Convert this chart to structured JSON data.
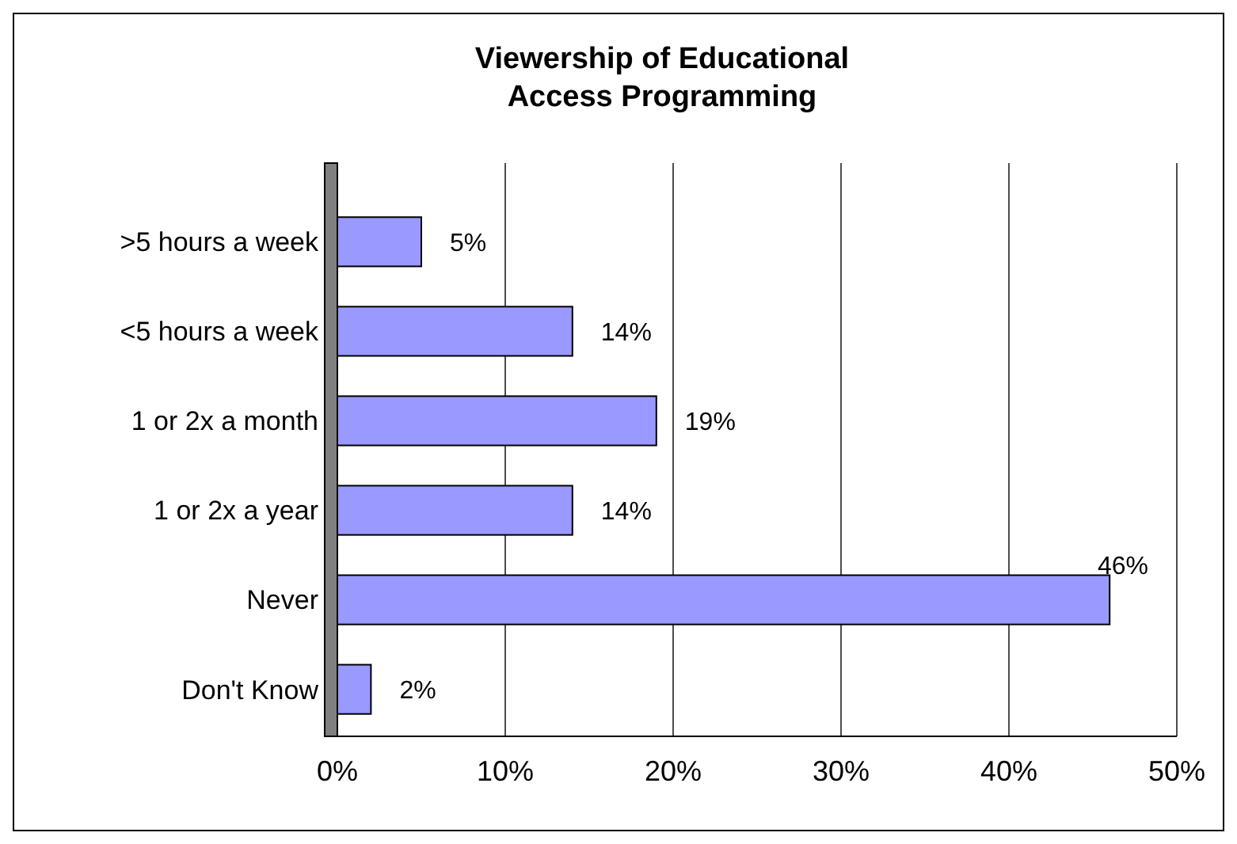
{
  "chart_data": {
    "type": "bar",
    "title": "Viewership of Educational Access Programming",
    "orientation": "horizontal",
    "categories": [
      ">5 hours a week",
      "<5 hours a week",
      "1 or 2x a month",
      "1 or 2x a year",
      "Never",
      "Don't Know"
    ],
    "values": [
      5,
      14,
      19,
      14,
      46,
      2
    ],
    "value_labels": [
      "5%",
      "14%",
      "19%",
      "14%",
      "46%",
      "2%"
    ],
    "color": "#9999ff",
    "xlim": [
      0,
      50
    ],
    "xticks": [
      {
        "value": 0,
        "label": "0%"
      },
      {
        "value": 10,
        "label": "10%"
      },
      {
        "value": 20,
        "label": "20%"
      },
      {
        "value": 30,
        "label": "30%"
      },
      {
        "value": 40,
        "label": "40%"
      },
      {
        "value": 50,
        "label": "50%"
      }
    ],
    "grid": "x"
  }
}
